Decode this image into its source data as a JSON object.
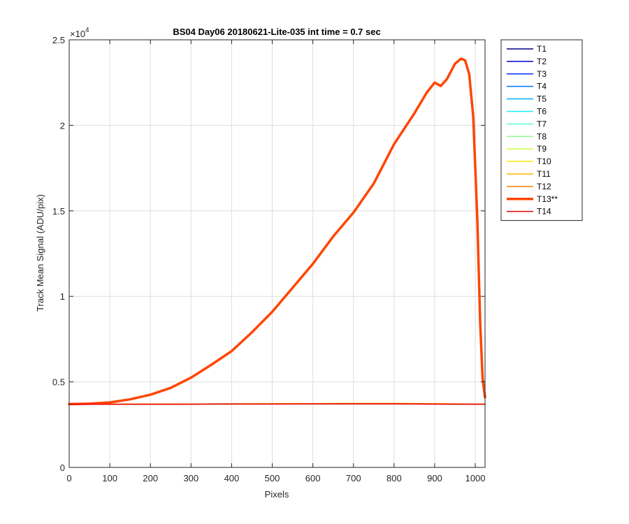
{
  "chart_data": {
    "type": "line",
    "title": "BS04 Day06 20180621-Lite-035 int time = 0.7 sec",
    "xlabel": "Pixels",
    "ylabel": "Track Mean Signal (ADU/pix)",
    "xlim": [
      0,
      1024
    ],
    "ylim": [
      0,
      25000
    ],
    "x_ticks": [
      0,
      100,
      200,
      300,
      400,
      500,
      600,
      700,
      800,
      900,
      1000
    ],
    "y_ticks": [
      0,
      5000,
      10000,
      15000,
      20000,
      25000
    ],
    "y_tick_labels": [
      "0",
      "0.5",
      "1",
      "1.5",
      "2",
      "2.5"
    ],
    "y_exponent": {
      "base": "×10",
      "power": "4"
    },
    "grid": true,
    "legend_position": "outside-right",
    "series": [
      {
        "name": "T1",
        "color": "#00008f",
        "width": 1.5,
        "points": [
          [
            0,
            3700
          ],
          [
            200,
            3700
          ],
          [
            400,
            3710
          ],
          [
            600,
            3720
          ],
          [
            800,
            3720
          ],
          [
            1024,
            3700
          ]
        ]
      },
      {
        "name": "T2",
        "color": "#0000d6",
        "width": 1.5,
        "points": [
          [
            0,
            3700
          ],
          [
            200,
            3700
          ],
          [
            400,
            3710
          ],
          [
            600,
            3720
          ],
          [
            800,
            3720
          ],
          [
            1024,
            3700
          ]
        ]
      },
      {
        "name": "T3",
        "color": "#0033ff",
        "width": 1.5,
        "points": [
          [
            0,
            3700
          ],
          [
            200,
            3700
          ],
          [
            400,
            3710
          ],
          [
            600,
            3720
          ],
          [
            800,
            3720
          ],
          [
            1024,
            3700
          ]
        ]
      },
      {
        "name": "T4",
        "color": "#0073ff",
        "width": 1.5,
        "points": [
          [
            0,
            3700
          ],
          [
            200,
            3700
          ],
          [
            400,
            3710
          ],
          [
            600,
            3720
          ],
          [
            800,
            3720
          ],
          [
            1024,
            3700
          ]
        ]
      },
      {
        "name": "T5",
        "color": "#00b3ff",
        "width": 1.5,
        "points": [
          [
            0,
            3700
          ],
          [
            200,
            3700
          ],
          [
            400,
            3710
          ],
          [
            600,
            3720
          ],
          [
            800,
            3720
          ],
          [
            1024,
            3700
          ]
        ]
      },
      {
        "name": "T6",
        "color": "#14f0ff",
        "width": 1.5,
        "points": [
          [
            0,
            3700
          ],
          [
            200,
            3700
          ],
          [
            400,
            3710
          ],
          [
            600,
            3720
          ],
          [
            800,
            3720
          ],
          [
            1024,
            3700
          ]
        ]
      },
      {
        "name": "T7",
        "color": "#5cffd6",
        "width": 1.5,
        "points": [
          [
            0,
            3700
          ],
          [
            200,
            3700
          ],
          [
            400,
            3710
          ],
          [
            600,
            3720
          ],
          [
            800,
            3720
          ],
          [
            1024,
            3700
          ]
        ]
      },
      {
        "name": "T8",
        "color": "#8fff8f",
        "width": 1.5,
        "points": [
          [
            0,
            3700
          ],
          [
            200,
            3700
          ],
          [
            400,
            3710
          ],
          [
            600,
            3720
          ],
          [
            800,
            3720
          ],
          [
            1024,
            3700
          ]
        ]
      },
      {
        "name": "T9",
        "color": "#c7ff47",
        "width": 1.5,
        "points": [
          [
            0,
            3700
          ],
          [
            200,
            3700
          ],
          [
            400,
            3710
          ],
          [
            600,
            3720
          ],
          [
            800,
            3720
          ],
          [
            1024,
            3700
          ]
        ]
      },
      {
        "name": "T10",
        "color": "#ffe600",
        "width": 1.5,
        "points": [
          [
            0,
            3700
          ],
          [
            200,
            3700
          ],
          [
            400,
            3710
          ],
          [
            600,
            3730
          ],
          [
            800,
            3730
          ],
          [
            1024,
            3700
          ]
        ]
      },
      {
        "name": "T11",
        "color": "#ffb300",
        "width": 1.5,
        "points": [
          [
            0,
            3700
          ],
          [
            200,
            3700
          ],
          [
            400,
            3710
          ],
          [
            600,
            3730
          ],
          [
            800,
            3740
          ],
          [
            1024,
            3700
          ]
        ]
      },
      {
        "name": "T12",
        "color": "#ff8000",
        "width": 1.5,
        "points": [
          [
            0,
            3700
          ],
          [
            200,
            3700
          ],
          [
            400,
            3710
          ],
          [
            600,
            3730
          ],
          [
            800,
            3740
          ],
          [
            1024,
            3700
          ]
        ]
      },
      {
        "name": "T13**",
        "color": "#ff4500",
        "width": 3.5,
        "points": [
          [
            0,
            3700
          ],
          [
            50,
            3730
          ],
          [
            100,
            3800
          ],
          [
            150,
            3980
          ],
          [
            200,
            4250
          ],
          [
            250,
            4650
          ],
          [
            300,
            5250
          ],
          [
            350,
            6000
          ],
          [
            400,
            6800
          ],
          [
            450,
            7900
          ],
          [
            500,
            9100
          ],
          [
            550,
            10500
          ],
          [
            600,
            11900
          ],
          [
            650,
            13500
          ],
          [
            700,
            14900
          ],
          [
            750,
            16600
          ],
          [
            800,
            18900
          ],
          [
            850,
            20700
          ],
          [
            880,
            21900
          ],
          [
            900,
            22500
          ],
          [
            915,
            22300
          ],
          [
            930,
            22700
          ],
          [
            950,
            23600
          ],
          [
            965,
            23900
          ],
          [
            975,
            23800
          ],
          [
            985,
            23000
          ],
          [
            995,
            20500
          ],
          [
            1005,
            14500
          ],
          [
            1012,
            8500
          ],
          [
            1018,
            5200
          ],
          [
            1024,
            4100
          ]
        ]
      },
      {
        "name": "T14",
        "color": "#e80000",
        "width": 1.5,
        "points": [
          [
            0,
            3690
          ],
          [
            200,
            3690
          ],
          [
            400,
            3700
          ],
          [
            600,
            3710
          ],
          [
            800,
            3710
          ],
          [
            1024,
            3690
          ]
        ]
      }
    ]
  }
}
